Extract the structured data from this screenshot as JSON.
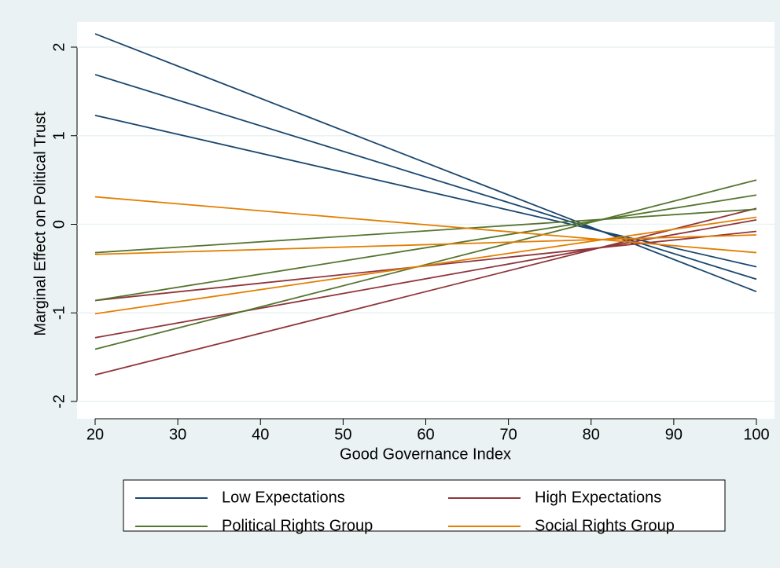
{
  "chart_data": {
    "type": "line",
    "xlabel": "Good Governance Index",
    "ylabel": "Marginal Effect on Political Trust",
    "x": [
      20,
      100
    ],
    "xlim": [
      20,
      100
    ],
    "xticks": [
      20,
      30,
      40,
      50,
      60,
      70,
      80,
      90,
      100
    ],
    "ylim": [
      -2,
      2
    ],
    "yticks": [
      {
        "value": -2,
        "label": "-2"
      },
      {
        "value": -1,
        "label": "-1"
      },
      0,
      1,
      2
    ],
    "grid": true,
    "series": [
      {
        "name": "Low Expectations",
        "color": "#1a476f",
        "lines": [
          {
            "values": [
              2.15,
              -0.76
            ]
          },
          {
            "values": [
              1.69,
              -0.62
            ]
          },
          {
            "values": [
              1.23,
              -0.48
            ]
          }
        ]
      },
      {
        "name": "High Expectations",
        "color": "#90353b",
        "lines": [
          {
            "values": [
              -1.7,
              0.18
            ]
          },
          {
            "values": [
              -1.28,
              0.05
            ]
          },
          {
            "values": [
              -0.86,
              -0.08
            ]
          }
        ]
      },
      {
        "name": "Political Rights Group",
        "color": "#55752f",
        "lines": [
          {
            "values": [
              -1.41,
              0.5
            ]
          },
          {
            "values": [
              -0.86,
              0.33
            ]
          },
          {
            "values": [
              -0.32,
              0.17
            ]
          }
        ]
      },
      {
        "name": "Social Rights Group",
        "color": "#e37e00",
        "lines": [
          {
            "values": [
              -1.01,
              0.08
            ]
          },
          {
            "values": [
              -0.34,
              -0.12
            ]
          },
          {
            "values": [
              0.31,
              -0.32
            ]
          }
        ]
      }
    ]
  }
}
